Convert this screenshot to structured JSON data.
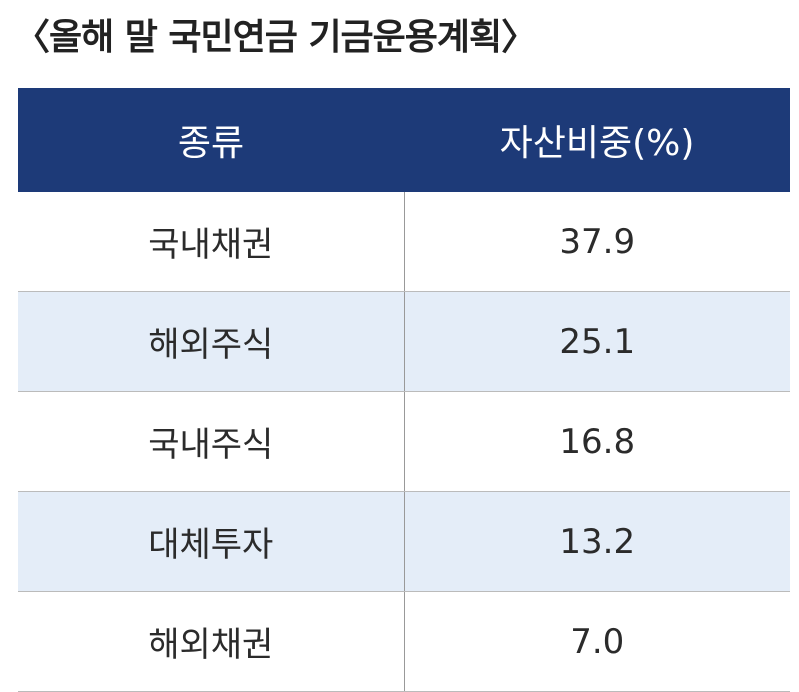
{
  "title": "〈올해 말 국민연금 기금운용계획〉",
  "table": {
    "header": [
      "종류",
      "자산비중(%)"
    ],
    "rows": [
      [
        "국내채권",
        "37.9"
      ],
      [
        "해외주식",
        "25.1"
      ],
      [
        "국내주식",
        "16.8"
      ],
      [
        "대체투자",
        "13.2"
      ],
      [
        "해외채권",
        "7.0"
      ]
    ]
  }
}
